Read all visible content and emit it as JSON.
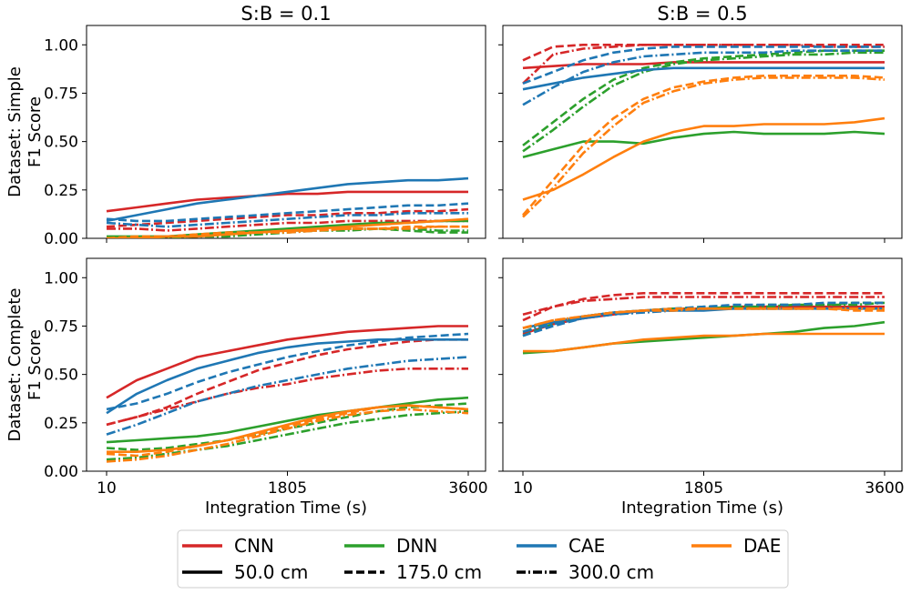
{
  "chart_data": {
    "type": "line",
    "x_ticks": [
      10,
      1805,
      3600
    ],
    "xlabel": "Integration Time (s)",
    "ylim": [
      0,
      1.1
    ],
    "y_ticks": [
      "0.00",
      "0.25",
      "0.50",
      "0.75",
      "1.00"
    ],
    "columns": [
      "S:B = 0.1",
      "S:B = 0.5"
    ],
    "rows": [
      "Dataset: Simple\nF1 Score",
      "Dataset: Complete\nF1 Score"
    ],
    "colors": {
      "CNN": "#d62728",
      "DNN": "#2ca02c",
      "CAE": "#1f77b4",
      "DAE": "#ff7f0e"
    },
    "legend": {
      "placement": "bottom-center",
      "entries": [
        "CNN",
        "DNN",
        "CAE",
        "DAE",
        "50.0 cm",
        "175.0 cm",
        "300.0 cm"
      ]
    },
    "panels": [
      {
        "id": "simple-sb01",
        "series": [
          {
            "model": "CNN",
            "distance": "50.0 cm",
            "values": [
              0.14,
              0.16,
              0.18,
              0.2,
              0.21,
              0.22,
              0.23,
              0.23,
              0.24,
              0.24,
              0.24,
              0.24,
              0.24
            ]
          },
          {
            "model": "CNN",
            "distance": "175.0 cm",
            "values": [
              0.06,
              0.07,
              0.08,
              0.09,
              0.1,
              0.11,
              0.12,
              0.12,
              0.13,
              0.13,
              0.14,
              0.14,
              0.15
            ]
          },
          {
            "model": "CNN",
            "distance": "300.0 cm",
            "values": [
              0.05,
              0.05,
              0.04,
              0.05,
              0.06,
              0.07,
              0.08,
              0.08,
              0.09,
              0.09,
              0.09,
              0.09,
              0.09
            ]
          },
          {
            "model": "DNN",
            "distance": "50.0 cm",
            "values": [
              0.01,
              0.01,
              0.01,
              0.02,
              0.03,
              0.04,
              0.05,
              0.06,
              0.07,
              0.08,
              0.08,
              0.09,
              0.09
            ]
          },
          {
            "model": "DNN",
            "distance": "175.0 cm",
            "values": [
              0.0,
              0.0,
              0.01,
              0.01,
              0.02,
              0.03,
              0.04,
              0.04,
              0.05,
              0.05,
              0.04,
              0.03,
              0.03
            ]
          },
          {
            "model": "DNN",
            "distance": "300.0 cm",
            "values": [
              0.0,
              0.0,
              0.0,
              0.01,
              0.01,
              0.02,
              0.03,
              0.04,
              0.04,
              0.05,
              0.05,
              0.04,
              0.04
            ]
          },
          {
            "model": "CAE",
            "distance": "50.0 cm",
            "values": [
              0.09,
              0.12,
              0.15,
              0.18,
              0.2,
              0.22,
              0.24,
              0.26,
              0.28,
              0.29,
              0.3,
              0.3,
              0.31
            ]
          },
          {
            "model": "CAE",
            "distance": "175.0 cm",
            "values": [
              0.1,
              0.09,
              0.09,
              0.1,
              0.11,
              0.12,
              0.13,
              0.14,
              0.15,
              0.16,
              0.17,
              0.17,
              0.18
            ]
          },
          {
            "model": "CAE",
            "distance": "300.0 cm",
            "values": [
              0.08,
              0.07,
              0.06,
              0.07,
              0.08,
              0.09,
              0.1,
              0.11,
              0.12,
              0.12,
              0.13,
              0.13,
              0.13
            ]
          },
          {
            "model": "DAE",
            "distance": "50.0 cm",
            "values": [
              0.0,
              0.0,
              0.01,
              0.01,
              0.02,
              0.03,
              0.04,
              0.05,
              0.06,
              0.07,
              0.08,
              0.09,
              0.1
            ]
          },
          {
            "model": "DAE",
            "distance": "175.0 cm",
            "values": [
              0.0,
              0.01,
              0.01,
              0.02,
              0.03,
              0.03,
              0.04,
              0.04,
              0.05,
              0.05,
              0.06,
              0.06,
              0.06
            ]
          },
          {
            "model": "DAE",
            "distance": "300.0 cm",
            "values": [
              0.0,
              0.0,
              0.01,
              0.01,
              0.02,
              0.03,
              0.03,
              0.04,
              0.05,
              0.05,
              0.05,
              0.06,
              0.06
            ]
          }
        ]
      },
      {
        "id": "simple-sb05",
        "series": [
          {
            "model": "CNN",
            "distance": "50.0 cm",
            "values": [
              0.88,
              0.89,
              0.9,
              0.9,
              0.9,
              0.91,
              0.91,
              0.91,
              0.91,
              0.91,
              0.91,
              0.91,
              0.91
            ]
          },
          {
            "model": "CNN",
            "distance": "175.0 cm",
            "values": [
              0.92,
              0.99,
              1.0,
              1.0,
              1.0,
              1.0,
              1.0,
              1.0,
              1.0,
              1.0,
              1.0,
              1.0,
              1.0
            ]
          },
          {
            "model": "CNN",
            "distance": "300.0 cm",
            "values": [
              0.8,
              0.95,
              0.98,
              0.99,
              1.0,
              1.0,
              1.0,
              1.0,
              1.0,
              1.0,
              0.99,
              0.99,
              0.99
            ]
          },
          {
            "model": "DNN",
            "distance": "50.0 cm",
            "values": [
              0.42,
              0.46,
              0.5,
              0.5,
              0.49,
              0.52,
              0.54,
              0.55,
              0.54,
              0.54,
              0.54,
              0.55,
              0.54
            ]
          },
          {
            "model": "DNN",
            "distance": "175.0 cm",
            "values": [
              0.48,
              0.6,
              0.72,
              0.82,
              0.88,
              0.91,
              0.93,
              0.94,
              0.95,
              0.96,
              0.97,
              0.97,
              0.97
            ]
          },
          {
            "model": "DNN",
            "distance": "300.0 cm",
            "values": [
              0.45,
              0.56,
              0.68,
              0.79,
              0.86,
              0.9,
              0.92,
              0.93,
              0.94,
              0.95,
              0.95,
              0.96,
              0.96
            ]
          },
          {
            "model": "CAE",
            "distance": "50.0 cm",
            "values": [
              0.77,
              0.8,
              0.83,
              0.85,
              0.87,
              0.88,
              0.88,
              0.88,
              0.88,
              0.88,
              0.88,
              0.88,
              0.88
            ]
          },
          {
            "model": "CAE",
            "distance": "175.0 cm",
            "values": [
              0.8,
              0.86,
              0.92,
              0.96,
              0.98,
              0.99,
              0.99,
              0.99,
              0.99,
              0.99,
              0.99,
              0.99,
              0.99
            ]
          },
          {
            "model": "CAE",
            "distance": "300.0 cm",
            "values": [
              0.69,
              0.78,
              0.86,
              0.91,
              0.94,
              0.95,
              0.96,
              0.96,
              0.96,
              0.97,
              0.97,
              0.97,
              0.97
            ]
          },
          {
            "model": "DAE",
            "distance": "50.0 cm",
            "values": [
              0.2,
              0.25,
              0.33,
              0.42,
              0.5,
              0.55,
              0.58,
              0.58,
              0.59,
              0.59,
              0.59,
              0.6,
              0.62
            ]
          },
          {
            "model": "DAE",
            "distance": "175.0 cm",
            "values": [
              0.12,
              0.3,
              0.48,
              0.62,
              0.72,
              0.78,
              0.81,
              0.83,
              0.84,
              0.84,
              0.84,
              0.84,
              0.83
            ]
          },
          {
            "model": "DAE",
            "distance": "300.0 cm",
            "values": [
              0.11,
              0.26,
              0.44,
              0.58,
              0.7,
              0.76,
              0.8,
              0.82,
              0.83,
              0.83,
              0.83,
              0.83,
              0.82
            ]
          }
        ]
      },
      {
        "id": "complete-sb01",
        "series": [
          {
            "model": "CNN",
            "distance": "50.0 cm",
            "values": [
              0.38,
              0.47,
              0.53,
              0.59,
              0.62,
              0.65,
              0.68,
              0.7,
              0.72,
              0.73,
              0.74,
              0.75,
              0.75
            ]
          },
          {
            "model": "CNN",
            "distance": "175.0 cm",
            "values": [
              0.24,
              0.28,
              0.33,
              0.4,
              0.46,
              0.52,
              0.56,
              0.6,
              0.63,
              0.65,
              0.67,
              0.68,
              0.68
            ]
          },
          {
            "model": "CNN",
            "distance": "300.0 cm",
            "values": [
              0.24,
              0.28,
              0.32,
              0.36,
              0.4,
              0.43,
              0.45,
              0.48,
              0.5,
              0.52,
              0.53,
              0.53,
              0.53
            ]
          },
          {
            "model": "DNN",
            "distance": "50.0 cm",
            "values": [
              0.15,
              0.16,
              0.17,
              0.18,
              0.2,
              0.23,
              0.26,
              0.29,
              0.31,
              0.33,
              0.35,
              0.37,
              0.38
            ]
          },
          {
            "model": "DNN",
            "distance": "175.0 cm",
            "values": [
              0.12,
              0.11,
              0.12,
              0.14,
              0.16,
              0.19,
              0.22,
              0.25,
              0.28,
              0.31,
              0.33,
              0.34,
              0.35
            ]
          },
          {
            "model": "DNN",
            "distance": "300.0 cm",
            "values": [
              0.06,
              0.07,
              0.09,
              0.11,
              0.13,
              0.16,
              0.19,
              0.22,
              0.25,
              0.27,
              0.29,
              0.3,
              0.31
            ]
          },
          {
            "model": "CAE",
            "distance": "50.0 cm",
            "values": [
              0.3,
              0.4,
              0.47,
              0.53,
              0.57,
              0.61,
              0.64,
              0.66,
              0.67,
              0.68,
              0.68,
              0.68,
              0.68
            ]
          },
          {
            "model": "CAE",
            "distance": "175.0 cm",
            "values": [
              0.32,
              0.35,
              0.4,
              0.46,
              0.51,
              0.55,
              0.59,
              0.62,
              0.65,
              0.67,
              0.69,
              0.7,
              0.71
            ]
          },
          {
            "model": "CAE",
            "distance": "300.0 cm",
            "values": [
              0.19,
              0.24,
              0.3,
              0.36,
              0.4,
              0.44,
              0.47,
              0.5,
              0.53,
              0.55,
              0.57,
              0.58,
              0.59
            ]
          },
          {
            "model": "DAE",
            "distance": "50.0 cm",
            "values": [
              0.1,
              0.1,
              0.11,
              0.13,
              0.16,
              0.2,
              0.24,
              0.28,
              0.31,
              0.33,
              0.34,
              0.33,
              0.32
            ]
          },
          {
            "model": "DAE",
            "distance": "175.0 cm",
            "values": [
              0.09,
              0.08,
              0.1,
              0.13,
              0.16,
              0.19,
              0.23,
              0.27,
              0.3,
              0.33,
              0.34,
              0.33,
              0.32
            ]
          },
          {
            "model": "DAE",
            "distance": "300.0 cm",
            "values": [
              0.05,
              0.06,
              0.08,
              0.11,
              0.14,
              0.18,
              0.22,
              0.26,
              0.29,
              0.31,
              0.32,
              0.31,
              0.3
            ]
          }
        ]
      },
      {
        "id": "complete-sb05",
        "series": [
          {
            "model": "CNN",
            "distance": "50.0 cm",
            "values": [
              0.71,
              0.76,
              0.79,
              0.81,
              0.83,
              0.84,
              0.84,
              0.85,
              0.85,
              0.85,
              0.85,
              0.85,
              0.85
            ]
          },
          {
            "model": "CNN",
            "distance": "175.0 cm",
            "values": [
              0.78,
              0.85,
              0.89,
              0.91,
              0.92,
              0.92,
              0.92,
              0.92,
              0.92,
              0.92,
              0.92,
              0.92,
              0.92
            ]
          },
          {
            "model": "CNN",
            "distance": "300.0 cm",
            "values": [
              0.81,
              0.85,
              0.88,
              0.89,
              0.9,
              0.9,
              0.9,
              0.9,
              0.9,
              0.9,
              0.9,
              0.9,
              0.9
            ]
          },
          {
            "model": "DNN",
            "distance": "50.0 cm",
            "values": [
              0.61,
              0.62,
              0.64,
              0.66,
              0.67,
              0.68,
              0.69,
              0.7,
              0.71,
              0.72,
              0.74,
              0.75,
              0.77
            ]
          },
          {
            "model": "DNN",
            "distance": "175.0 cm",
            "values": [
              0.7,
              0.76,
              0.8,
              0.82,
              0.83,
              0.84,
              0.85,
              0.85,
              0.86,
              0.86,
              0.86,
              0.87,
              0.87
            ]
          },
          {
            "model": "DNN",
            "distance": "300.0 cm",
            "values": [
              0.72,
              0.77,
              0.8,
              0.82,
              0.83,
              0.84,
              0.84,
              0.85,
              0.85,
              0.86,
              0.86,
              0.86,
              0.87
            ]
          },
          {
            "model": "CAE",
            "distance": "50.0 cm",
            "values": [
              0.74,
              0.77,
              0.8,
              0.82,
              0.83,
              0.83,
              0.83,
              0.84,
              0.84,
              0.84,
              0.84,
              0.84,
              0.84
            ]
          },
          {
            "model": "CAE",
            "distance": "175.0 cm",
            "values": [
              0.7,
              0.75,
              0.79,
              0.81,
              0.83,
              0.84,
              0.85,
              0.86,
              0.86,
              0.86,
              0.87,
              0.87,
              0.87
            ]
          },
          {
            "model": "CAE",
            "distance": "300.0 cm",
            "values": [
              0.72,
              0.76,
              0.79,
              0.81,
              0.82,
              0.83,
              0.84,
              0.84,
              0.84,
              0.84,
              0.84,
              0.84,
              0.84
            ]
          },
          {
            "model": "DAE",
            "distance": "50.0 cm",
            "values": [
              0.62,
              0.62,
              0.64,
              0.66,
              0.68,
              0.69,
              0.7,
              0.7,
              0.71,
              0.71,
              0.71,
              0.71,
              0.71
            ]
          },
          {
            "model": "DAE",
            "distance": "175.0 cm",
            "values": [
              0.74,
              0.78,
              0.8,
              0.82,
              0.83,
              0.84,
              0.84,
              0.84,
              0.84,
              0.84,
              0.84,
              0.83,
              0.83
            ]
          },
          {
            "model": "DAE",
            "distance": "300.0 cm",
            "values": [
              0.74,
              0.78,
              0.8,
              0.82,
              0.83,
              0.83,
              0.84,
              0.84,
              0.84,
              0.84,
              0.84,
              0.84,
              0.84
            ]
          }
        ]
      }
    ]
  }
}
